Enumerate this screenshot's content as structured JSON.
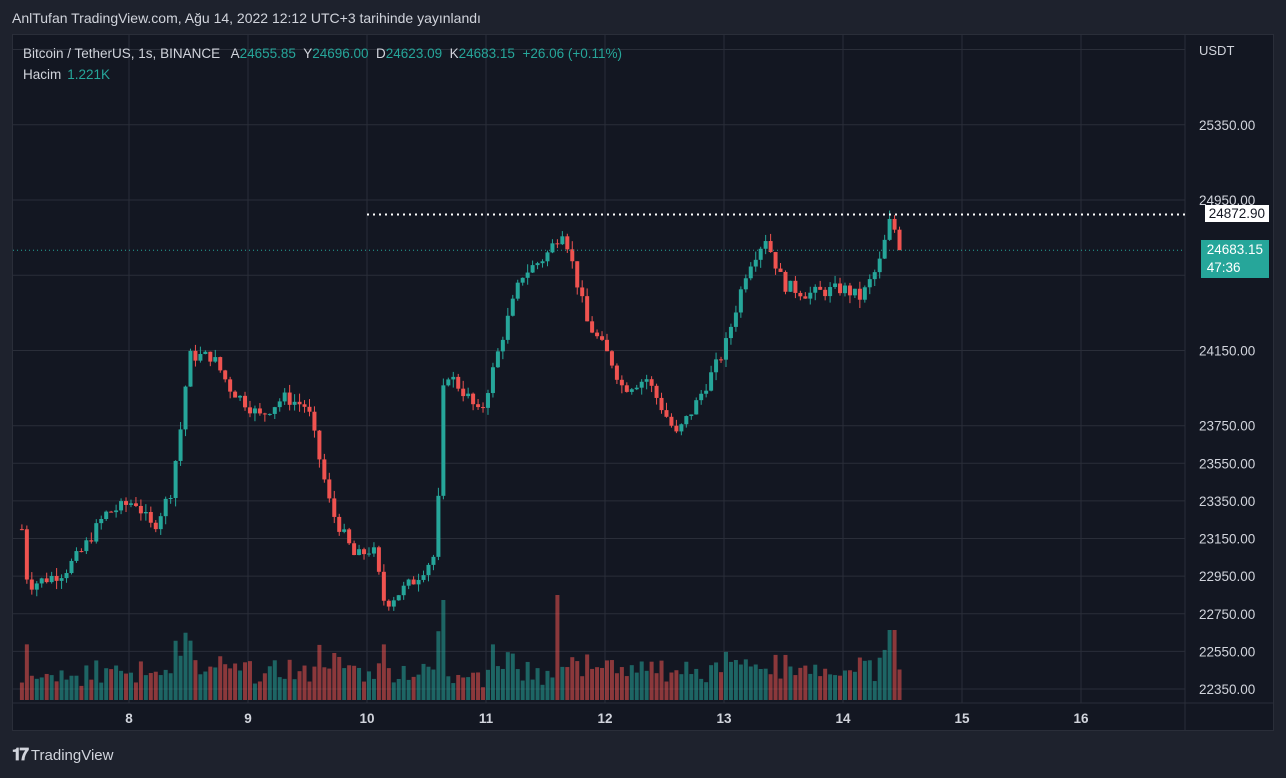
{
  "caption": "AnlTufan TradingView.com, Ağu 14, 2022 12:12 UTC+3 tarihinde yayınlandı",
  "legend": {
    "symbol": "Bitcoin / TetherUS, 1s, BINANCE",
    "open_label": "A",
    "open": "24655.85",
    "high_label": "Y",
    "high": "24696.00",
    "low_label": "D",
    "low": "24623.09",
    "close_label": "K",
    "close": "24683.15",
    "change": "+26.06 (+0.11%)",
    "volume_label": "Hacim",
    "volume": "1.221K"
  },
  "axis": {
    "currency": "USDT",
    "x_labels": [
      "8",
      "9",
      "10",
      "11",
      "12",
      "13",
      "14",
      "15",
      "16"
    ],
    "y_labels": [
      "25350.00",
      "24950.00",
      "24150.00",
      "23750.00",
      "23550.00",
      "23350.00",
      "23150.00",
      "22950.00",
      "22750.00",
      "22550.00",
      "22350.00"
    ]
  },
  "markers": {
    "dotted_level": "24872.90",
    "last_price": "24683.15",
    "countdown": "47:36"
  },
  "footer": {
    "brand": "TradingView"
  },
  "colors": {
    "up": "#26a69a",
    "down": "#ef5350",
    "background": "#131722",
    "grid": "#2a2e39",
    "text": "#d1d4dc"
  },
  "chart_data": {
    "type": "candlestick",
    "title": "Bitcoin / TetherUS, 1s, BINANCE",
    "ylim": [
      22280,
      25700
    ],
    "timeframe": "1h",
    "grid": true,
    "anchors": [
      {
        "day": 7.1,
        "price": 23200
      },
      {
        "day": 7.15,
        "price": 22900
      },
      {
        "day": 7.45,
        "price": 22970
      },
      {
        "day": 7.6,
        "price": 23080
      },
      {
        "day": 7.8,
        "price": 23280
      },
      {
        "day": 8.05,
        "price": 23350
      },
      {
        "day": 8.2,
        "price": 23200
      },
      {
        "day": 8.35,
        "price": 23400
      },
      {
        "day": 8.45,
        "price": 23800
      },
      {
        "day": 8.5,
        "price": 24120
      },
      {
        "day": 8.7,
        "price": 24120
      },
      {
        "day": 8.85,
        "price": 23950
      },
      {
        "day": 9.1,
        "price": 23800
      },
      {
        "day": 9.3,
        "price": 23900
      },
      {
        "day": 9.5,
        "price": 23850
      },
      {
        "day": 9.7,
        "price": 23300
      },
      {
        "day": 9.9,
        "price": 23050
      },
      {
        "day": 10.05,
        "price": 23100
      },
      {
        "day": 10.15,
        "price": 22800
      },
      {
        "day": 10.4,
        "price": 22930
      },
      {
        "day": 10.58,
        "price": 23070
      },
      {
        "day": 10.65,
        "price": 24050
      },
      {
        "day": 10.85,
        "price": 23900
      },
      {
        "day": 10.95,
        "price": 23800
      },
      {
        "day": 11.15,
        "price": 24250
      },
      {
        "day": 11.3,
        "price": 24550
      },
      {
        "day": 11.5,
        "price": 24650
      },
      {
        "day": 11.65,
        "price": 24800
      },
      {
        "day": 11.85,
        "price": 24300
      },
      {
        "day": 12.05,
        "price": 24100
      },
      {
        "day": 12.15,
        "price": 23950
      },
      {
        "day": 12.35,
        "price": 24000
      },
      {
        "day": 12.6,
        "price": 23700
      },
      {
        "day": 12.75,
        "price": 23850
      },
      {
        "day": 13.0,
        "price": 24150
      },
      {
        "day": 13.2,
        "price": 24600
      },
      {
        "day": 13.35,
        "price": 24750
      },
      {
        "day": 13.5,
        "price": 24500
      },
      {
        "day": 13.7,
        "price": 24450
      },
      {
        "day": 14.0,
        "price": 24480
      },
      {
        "day": 14.15,
        "price": 24430
      },
      {
        "day": 14.3,
        "price": 24600
      },
      {
        "day": 14.4,
        "price": 24850
      },
      {
        "day": 14.5,
        "price": 24683
      }
    ],
    "volume_unit": "K"
  }
}
